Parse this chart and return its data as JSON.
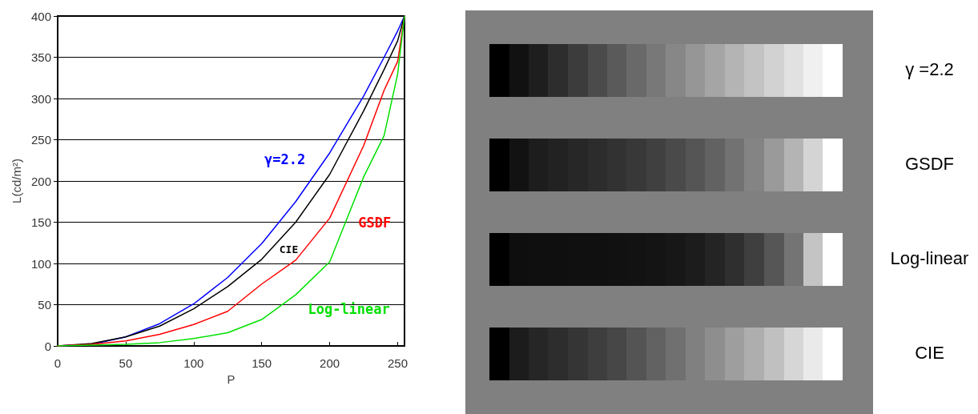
{
  "chart_data": {
    "type": "line",
    "xlabel": "P",
    "ylabel": "L(cd/m²)",
    "x": [
      0,
      25,
      50,
      75,
      100,
      125,
      150,
      175,
      200,
      225,
      240,
      250,
      255
    ],
    "series": [
      {
        "name": "γ=2.2",
        "color": "#0000ff",
        "values": [
          0,
          2,
          11,
          27,
          51,
          83,
          124,
          175,
          234,
          303,
          350,
          382,
          400
        ]
      },
      {
        "name": "CIE",
        "color": "#000000",
        "values": [
          0,
          3,
          11,
          24,
          45,
          72,
          105,
          150,
          208,
          285,
          335,
          370,
          400
        ]
      },
      {
        "name": "GSDF",
        "color": "#ff0000",
        "values": [
          0,
          2,
          6,
          14,
          26,
          42,
          75,
          104,
          155,
          243,
          310,
          345,
          400
        ]
      },
      {
        "name": "Log-linear",
        "color": "#00e000",
        "values": [
          0,
          1,
          2,
          4,
          9,
          16,
          32,
          62,
          102,
          205,
          255,
          330,
          400
        ]
      }
    ],
    "xlim": [
      0,
      255
    ],
    "xticks": [
      0,
      50,
      100,
      150,
      200,
      250
    ],
    "ylim": [
      0,
      400
    ],
    "yticks": [
      0,
      50,
      100,
      150,
      200,
      250,
      300,
      350,
      400
    ],
    "grid": "y",
    "marker": "none",
    "line_style": "solid",
    "annotations": [
      "γ =2.2",
      "GSDF",
      "Log-linear",
      "CIE"
    ]
  }
}
